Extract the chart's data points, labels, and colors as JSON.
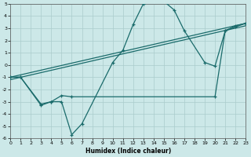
{
  "xlabel": "Humidex (Indice chaleur)",
  "xlim": [
    0,
    23
  ],
  "ylim": [
    -6,
    5
  ],
  "xticks": [
    0,
    1,
    2,
    3,
    4,
    5,
    6,
    7,
    8,
    9,
    10,
    11,
    12,
    13,
    14,
    15,
    16,
    17,
    18,
    19,
    20,
    21,
    22,
    23
  ],
  "yticks": [
    -6,
    -5,
    -4,
    -3,
    -2,
    -1,
    0,
    1,
    2,
    3,
    4,
    5
  ],
  "bg_color": "#cce8e8",
  "grid_color": "#aacccc",
  "line_color": "#1a6b6b",
  "line1_x": [
    0,
    23
  ],
  "line1_y": [
    -1.0,
    3.4
  ],
  "line2_x": [
    0,
    23
  ],
  "line2_y": [
    -1.2,
    3.2
  ],
  "curve_x": [
    0,
    1,
    3,
    4,
    5,
    6,
    7,
    10,
    11,
    12,
    13,
    14,
    15,
    16,
    17,
    19,
    20,
    21,
    22,
    23
  ],
  "curve_y": [
    -1.0,
    -1.0,
    -3.3,
    -3.0,
    -3.0,
    -5.7,
    -4.8,
    0.2,
    1.2,
    3.3,
    5.0,
    5.2,
    5.2,
    4.5,
    2.8,
    0.2,
    -0.1,
    2.8,
    3.2,
    3.4
  ],
  "flat_x": [
    0,
    1,
    3,
    4,
    5,
    6,
    20,
    21,
    22,
    23
  ],
  "flat_y": [
    -1.0,
    -1.0,
    -3.2,
    -3.0,
    -2.5,
    -2.6,
    -2.6,
    2.8,
    3.1,
    3.4
  ]
}
